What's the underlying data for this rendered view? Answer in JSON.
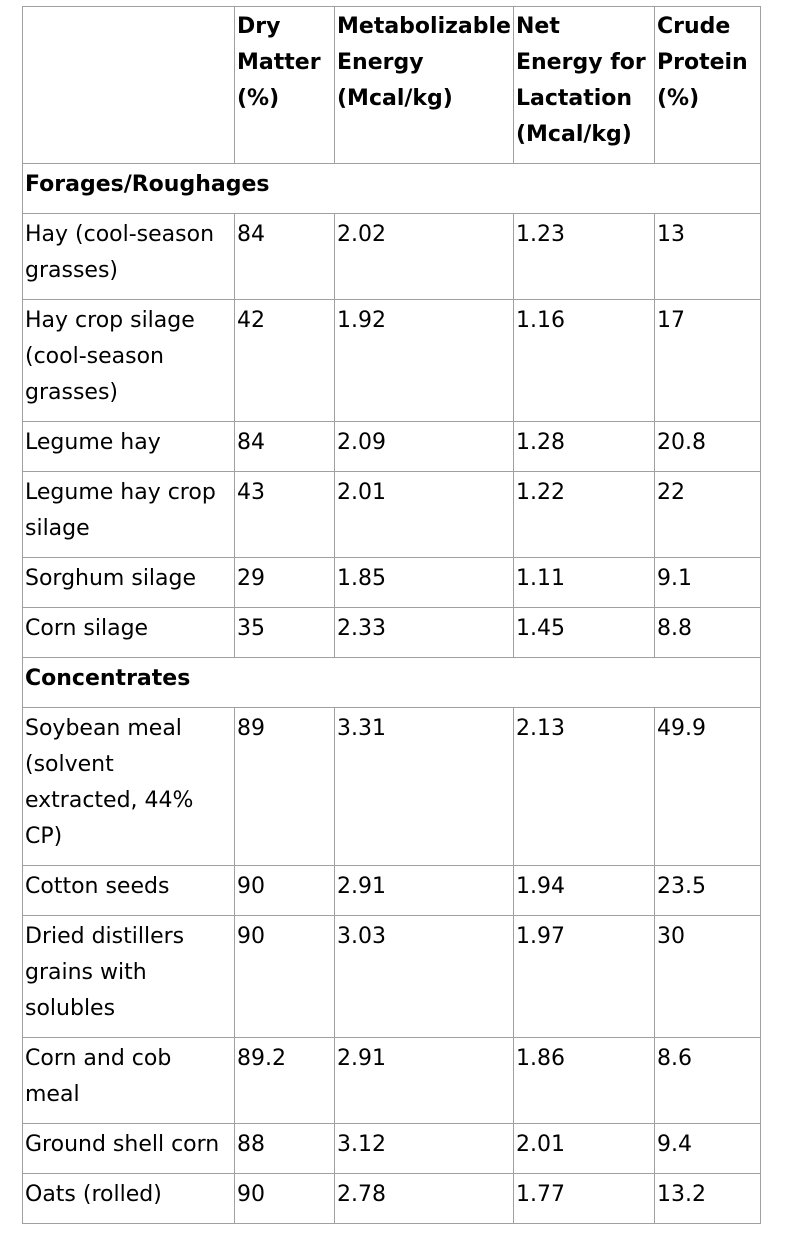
{
  "table": {
    "headers": [
      "",
      "Dry Matter (%)",
      "Metabolizable Energy (Mcal/kg)",
      "Net Energy for Lactation (Mcal/kg)",
      "Crude Protein (%)"
    ],
    "sections": [
      {
        "name": "Forages/Roughages",
        "rows": [
          [
            "Hay (cool-season grasses)",
            "84",
            "2.02",
            "1.23",
            "13"
          ],
          [
            "Hay crop silage (cool-season grasses)",
            "42",
            "1.92",
            "1.16",
            "17"
          ],
          [
            "Legume hay",
            "84",
            "2.09",
            "1.28",
            "20.8"
          ],
          [
            "Legume hay crop silage",
            "43",
            "2.01",
            "1.22",
            "22"
          ],
          [
            "Sorghum silage",
            "29",
            "1.85",
            "1.11",
            "9.1"
          ],
          [
            "Corn silage",
            "35",
            "2.33",
            "1.45",
            "8.8"
          ]
        ]
      },
      {
        "name": "Concentrates",
        "rows": [
          [
            "Soybean meal (solvent extracted, 44% CP)",
            "89",
            "3.31",
            "2.13",
            "49.9"
          ],
          [
            "Cotton seeds",
            "90",
            "2.91",
            "1.94",
            "23.5"
          ],
          [
            "Dried distillers grains with solubles",
            "90",
            "3.03",
            "1.97",
            "30"
          ],
          [
            "Corn and cob meal",
            "89.2",
            "2.91",
            "1.86",
            "8.6"
          ],
          [
            "Ground shell corn",
            "88",
            "3.12",
            "2.01",
            "9.4"
          ],
          [
            "Oats (rolled)",
            "90",
            "2.78",
            "1.77",
            "13.2"
          ]
        ]
      }
    ]
  }
}
